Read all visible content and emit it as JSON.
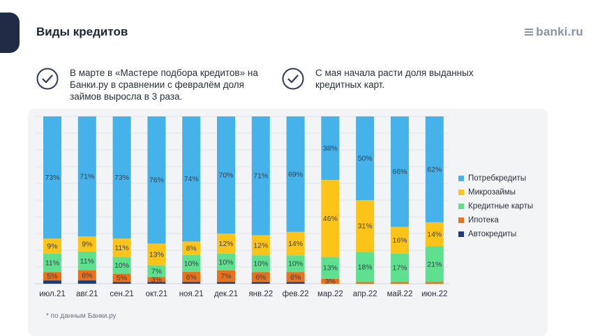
{
  "header": {
    "title": "Виды кредитов",
    "logo": "banki.ru"
  },
  "notes": [
    {
      "text": "В марте в «Мастере подбора кредитов» на Банки.ру в сравнении с февралём доля займов выросла в 3 раза."
    },
    {
      "text": "С мая начала расти доля выданных кредитных карт."
    }
  ],
  "footnote": "* по данным Банки.ру",
  "icons": {
    "note_icon": "check-circle-icon",
    "logo_icon": "banki-logo-icon"
  },
  "chart_data": {
    "type": "bar",
    "stacked": true,
    "normalized": true,
    "categories": [
      "июл.21",
      "авг.21",
      "сен.21",
      "окт.21",
      "ноя.21",
      "дек.21",
      "янв.22",
      "фев.22",
      "мар.22",
      "апр.22",
      "май.22",
      "июн.22"
    ],
    "series": [
      {
        "name": "Автокредиты",
        "color": "#1f3a7a",
        "values": [
          2,
          2,
          1,
          1,
          1,
          1,
          1,
          1,
          0,
          0,
          0,
          0
        ],
        "labels": [
          "",
          "",
          "",
          "",
          "",
          "",
          "",
          "",
          "",
          "",
          "",
          ""
        ]
      },
      {
        "name": "Ипотека",
        "color": "#e8711a",
        "values": [
          5,
          6,
          5,
          3,
          6,
          7,
          6,
          6,
          3,
          1,
          1,
          1
        ],
        "labels": [
          "5%",
          "6%",
          "5%",
          "3%",
          "6%",
          "7%",
          "6%",
          "6%",
          "3%",
          "",
          "",
          ""
        ]
      },
      {
        "name": "Кредитные карты",
        "color": "#5ee08e",
        "values": [
          11,
          11,
          10,
          7,
          10,
          10,
          10,
          10,
          13,
          18,
          17,
          21
        ],
        "labels": [
          "11%",
          "11%",
          "10%",
          "7%",
          "10%",
          "10%",
          "10%",
          "10%",
          "13%",
          "18%",
          "17%",
          "21%"
        ]
      },
      {
        "name": "Микрозаймы",
        "color": "#fcc419",
        "values": [
          9,
          9,
          11,
          13,
          8,
          12,
          12,
          14,
          46,
          31,
          16,
          14
        ],
        "labels": [
          "9%",
          "9%",
          "11%",
          "13%",
          "8%",
          "12%",
          "12%",
          "14%",
          "46%",
          "31%",
          "16%",
          "14%"
        ]
      },
      {
        "name": "Потребкредиты",
        "color": "#45b2ea",
        "values": [
          73,
          71,
          73,
          76,
          74,
          70,
          71,
          69,
          38,
          50,
          66,
          62
        ],
        "labels": [
          "73%",
          "71%",
          "73%",
          "76%",
          "74%",
          "70%",
          "71%",
          "69%",
          "38%",
          "50%",
          "66%",
          "62%"
        ]
      }
    ],
    "legend": [
      "Потребкредиты",
      "Микрозаймы",
      "Кредитные карты",
      "Ипотека",
      "Автокредиты"
    ],
    "legend_position": "right",
    "grid": true,
    "ylim": [
      0,
      100
    ]
  }
}
